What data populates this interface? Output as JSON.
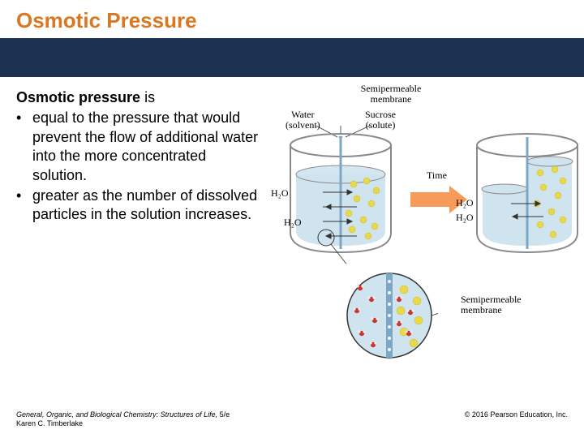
{
  "title": "Osmotic Pressure",
  "lead_bold": "Osmotic pressure",
  "lead_rest": " is",
  "bullets": [
    "equal to the pressure that would prevent the flow of additional water into the more concentrated solution.",
    "greater as the number of dissolved particles in the solution increases."
  ],
  "figure": {
    "membrane_label": "Semipermeable membrane",
    "left_label": "Water",
    "left_sublabel": "(solvent)",
    "right_label": "Sucrose",
    "right_sublabel": "(solute)",
    "h2o": "H₂O",
    "time": "Time",
    "membrane_label2": "Semipermeable membrane",
    "colors": {
      "beaker_outline": "#8a8a8a",
      "water_fill": "#cfe4ee",
      "membrane": "#7da7c4",
      "solute": "#e9d94a",
      "water_mol_o": "#c33",
      "water_mol_h": "#eee",
      "arrow": "#f58a3c",
      "label_line": "#333"
    }
  },
  "footer": {
    "book": "General, Organic, and Biological Chemistry: Structures of Life,",
    "edition": " 5/e",
    "author": "Karen C. Timberlake",
    "copyright": "© 2016 Pearson Education, Inc."
  }
}
